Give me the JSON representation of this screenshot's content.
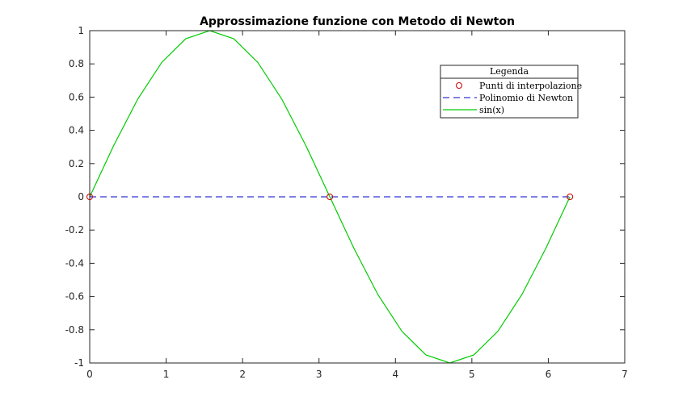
{
  "chart_data": {
    "type": "line",
    "title": "Approssimazione funzione con Metodo di Newton",
    "xlabel": "",
    "ylabel": "",
    "xlim": [
      0,
      7
    ],
    "ylim": [
      -1,
      1
    ],
    "grid": false,
    "x_ticks": [
      0,
      1,
      2,
      3,
      4,
      5,
      6,
      7
    ],
    "y_ticks": [
      -1,
      -0.8,
      -0.6,
      -0.4,
      -0.2,
      0,
      0.2,
      0.4,
      0.6,
      0.8,
      1
    ],
    "x_tick_labels": [
      "0",
      "1",
      "2",
      "3",
      "4",
      "5",
      "6",
      "7"
    ],
    "y_tick_labels": [
      "-1",
      "-0.8",
      "-0.6",
      "-0.4",
      "-0.2",
      "0",
      "0.2",
      "0.4",
      "0.6",
      "0.8",
      "1"
    ],
    "legend": {
      "title": "Legenda",
      "placement": "top-right",
      "entries": [
        "Punti di interpolazione",
        "Polinomio di Newton",
        "sin(x)"
      ]
    },
    "series": [
      {
        "name": "Punti di interpolazione",
        "style": "markers",
        "marker": "circle",
        "color": "#cc0000",
        "x": [
          0,
          3.1416,
          6.2832
        ],
        "y": [
          0,
          0,
          0
        ]
      },
      {
        "name": "Polinomio di Newton",
        "style": "dashed-line",
        "color": "#0000cc",
        "x": [
          0,
          3.1416,
          6.2832
        ],
        "y": [
          0,
          0,
          0
        ]
      },
      {
        "name": "sin(x)",
        "style": "solid-line",
        "color": "#00cc00",
        "x": [
          0,
          0.3142,
          0.6283,
          0.9425,
          1.2566,
          1.5708,
          1.885,
          2.1991,
          2.5133,
          2.8274,
          3.1416,
          3.4558,
          3.7699,
          4.0841,
          4.3982,
          4.7124,
          5.0265,
          5.3407,
          5.6549,
          5.969,
          6.2832
        ],
        "y": [
          0,
          0.309,
          0.5878,
          0.809,
          0.9511,
          1,
          0.9511,
          0.809,
          0.5878,
          0.309,
          0,
          -0.309,
          -0.5878,
          -0.809,
          -0.9511,
          -1,
          -0.9511,
          -0.809,
          -0.5878,
          -0.309,
          0
        ]
      }
    ]
  }
}
